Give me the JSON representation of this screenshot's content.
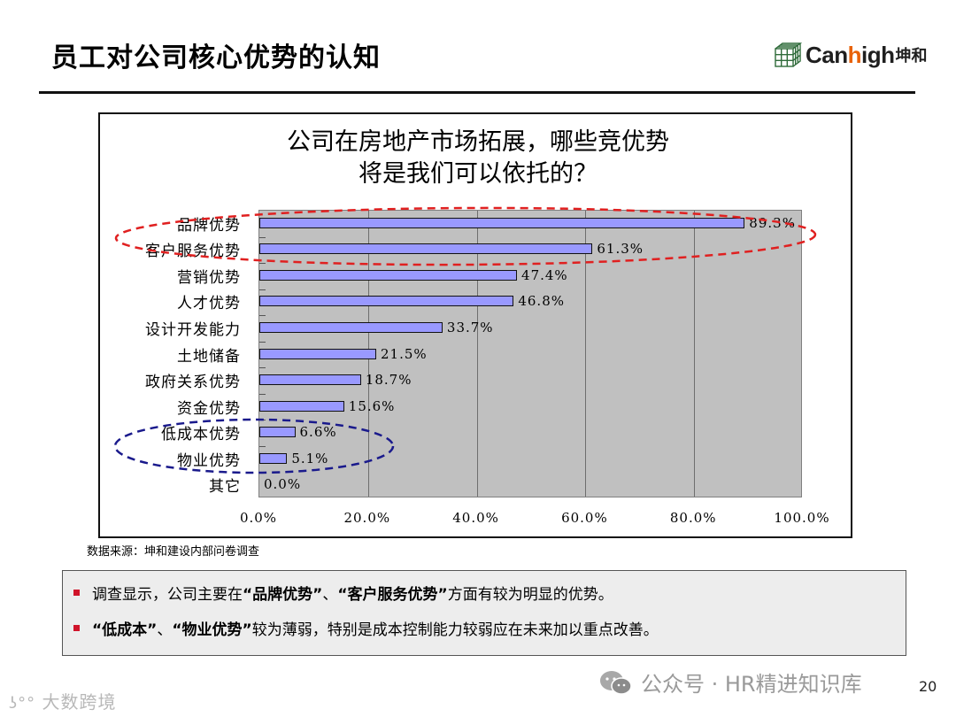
{
  "page": {
    "title": "员工对公司核心优势的认知",
    "logo": {
      "brand_prefix": "Can",
      "brand_highlight": "h",
      "brand_suffix": "igh",
      "brand_cn": "坤和"
    },
    "source_note": "数据来源：坤和建设内部问卷调查",
    "page_number": "20",
    "watermark_left": "大数跨境",
    "watermark_right": "公众号 · HR精进知识库"
  },
  "summary": {
    "items": [
      {
        "text_1": "调查显示，公司主要在",
        "bold_1": "“品牌优势”",
        "text_2": "、",
        "bold_2": "“客户服务优势”",
        "text_3": "方面有较为明显的优势。"
      },
      {
        "text_1": "",
        "bold_1": "“低成本”",
        "text_2": "、",
        "bold_2": "“物业优势”",
        "text_3": "较为薄弱，特别是成本控制能力较弱应在未来加以重点改善。"
      }
    ],
    "bullet_color": "#d0142a"
  },
  "chart_data": {
    "type": "bar",
    "orientation": "horizontal",
    "title": "公司在房地产市场拓展，哪些竞优势将是我们可以依托的？",
    "title_lines": [
      "公司在房地产市场拓展，哪些竞优势",
      "将是我们可以依托的？"
    ],
    "categories": [
      "品牌优势",
      "客户服务优势",
      "营销优势",
      "人才优势",
      "设计开发能力",
      "土地储备",
      "政府关系优势",
      "资金优势",
      "低成本优势",
      "物业优势",
      "其它"
    ],
    "values": [
      89.3,
      61.3,
      47.4,
      46.8,
      33.7,
      21.5,
      18.7,
      15.6,
      6.6,
      5.1,
      0.0
    ],
    "value_labels": [
      "89.3%",
      "61.3%",
      "47.4%",
      "46.8%",
      "33.7%",
      "21.5%",
      "18.7%",
      "15.6%",
      "6.6%",
      "5.1%",
      "0.0%"
    ],
    "xlabel": "",
    "ylabel": "",
    "xlim": [
      0,
      100
    ],
    "x_ticks": [
      "0.0%",
      "20.0%",
      "40.0%",
      "60.0%",
      "80.0%",
      "100.0%"
    ],
    "grid": true,
    "legend": "none",
    "colors": {
      "bar": "#9999ff",
      "plot_bg": "#c0c0c0",
      "highlight_strong": "#e02020",
      "highlight_weak": "#1a1a8c"
    },
    "annotations": [
      {
        "type": "dashed-ellipse",
        "color": "red",
        "covers": [
          "品牌优势",
          "客户服务优势"
        ]
      },
      {
        "type": "dashed-ellipse",
        "color": "navy",
        "covers": [
          "低成本优势",
          "物业优势"
        ]
      }
    ]
  }
}
